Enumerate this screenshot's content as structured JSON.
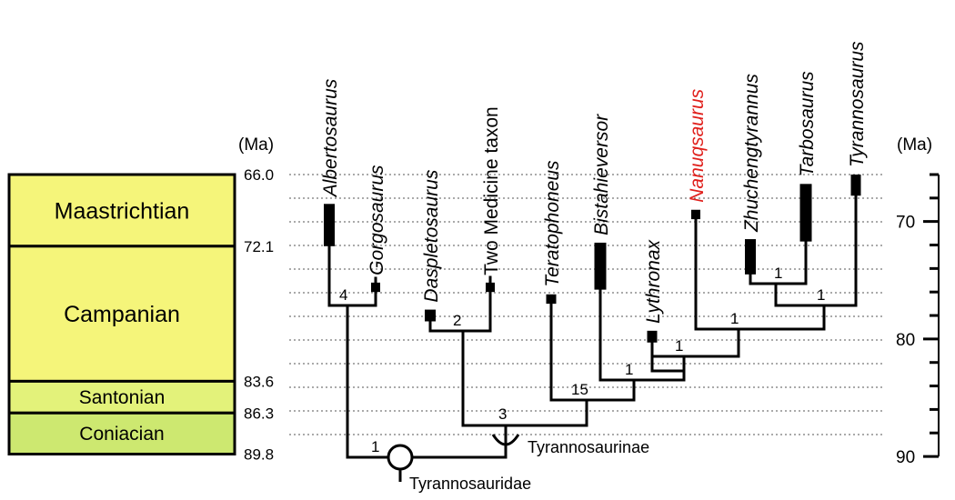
{
  "time_unit_left": "(Ma)",
  "time_unit_right": "(Ma)",
  "stages": [
    {
      "name": "Maastrichtian",
      "start_ma": 66.0,
      "end_ma": 72.1,
      "color": "#f5f57a"
    },
    {
      "name": "Campanian",
      "start_ma": 72.1,
      "end_ma": 83.6,
      "color": "#f5f57a"
    },
    {
      "name": "Santonian",
      "start_ma": 83.6,
      "end_ma": 86.3,
      "color": "#e3f27a"
    },
    {
      "name": "Coniacian",
      "start_ma": 86.3,
      "end_ma": 89.8,
      "color": "#cde870"
    }
  ],
  "boundary_ages": [
    "66.0",
    "72.1",
    "83.6",
    "86.3",
    "89.8"
  ],
  "scale_ticks": [
    {
      "ma": 70,
      "label": "70"
    },
    {
      "ma": 80,
      "label": "80"
    },
    {
      "ma": 90,
      "label": "90"
    }
  ],
  "taxa": [
    {
      "name": "Albertosaurus",
      "italic": true,
      "highlight": false,
      "range_ma": [
        68.5,
        72.1
      ]
    },
    {
      "name": "Gorgosaurus",
      "italic": true,
      "highlight": false,
      "range_ma": [
        75.2,
        76.0
      ]
    },
    {
      "name": "Daspletosaurus",
      "italic": true,
      "highlight": false,
      "range_ma": [
        77.5,
        78.5
      ]
    },
    {
      "name": "Two Medicine taxon",
      "italic": false,
      "highlight": false,
      "range_ma": [
        75.2,
        76.0
      ]
    },
    {
      "name": "Teratophoneus",
      "italic": true,
      "highlight": false,
      "range_ma": [
        76.2,
        77.0
      ]
    },
    {
      "name": "Bistahieversor",
      "italic": true,
      "highlight": false,
      "range_ma": [
        71.8,
        75.8
      ]
    },
    {
      "name": "Lythronax",
      "italic": true,
      "highlight": false,
      "range_ma": [
        79.3,
        80.3
      ]
    },
    {
      "name": "Nanuqsaurus",
      "italic": true,
      "highlight": true,
      "range_ma": [
        69.0,
        69.8
      ]
    },
    {
      "name": "Zhuchengtyrannus",
      "italic": true,
      "highlight": false,
      "range_ma": [
        71.5,
        74.5
      ]
    },
    {
      "name": "Tarbosaurus",
      "italic": true,
      "highlight": false,
      "range_ma": [
        66.8,
        71.7
      ]
    },
    {
      "name": "Tyrannosaurus",
      "italic": true,
      "highlight": false,
      "range_ma": [
        66.0,
        67.8
      ]
    }
  ],
  "support_values": [
    "4",
    "2",
    "15",
    "1",
    "1",
    "1",
    "1",
    "1",
    "3",
    "1"
  ],
  "clades": {
    "tyrannosauridae": "Tyrannosauridae",
    "tyrannosaurinae": "Tyrannosaurinae"
  },
  "colors": {
    "highlight": "#e0201c",
    "stage_border": "#000000",
    "gridline": "#555555"
  }
}
